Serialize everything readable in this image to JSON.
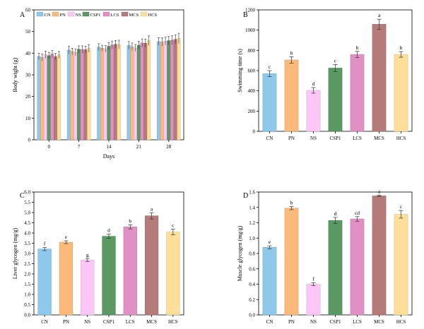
{
  "colors": {
    "CN": "#8ec8ea",
    "PN": "#fbb97a",
    "NS": "#fcc7f6",
    "CSP1": "#5a9a62",
    "LCS": "#e090c4",
    "MCS": "#b57a7a",
    "HCS": "#fddf9a"
  },
  "chart_data": [
    {
      "panel": "A",
      "type": "bar",
      "xlabel": "Days",
      "ylabel": "Body wight (g)",
      "ylim": [
        0,
        60
      ],
      "yticks": [
        "0",
        "10",
        "20",
        "30",
        "40",
        "50",
        "60"
      ],
      "categories": [
        "0",
        "7",
        "14",
        "21",
        "28"
      ],
      "legend_position": "top",
      "series": [
        {
          "name": "CN",
          "values": [
            38.5,
            41.5,
            42.8,
            43.6,
            45.4
          ],
          "errors": [
            1.5,
            1.8,
            1.6,
            1.8,
            1.8
          ]
        },
        {
          "name": "PN",
          "values": [
            38.0,
            40.8,
            42.3,
            43.0,
            45.2
          ],
          "errors": [
            1.6,
            1.5,
            1.4,
            1.7,
            1.9
          ]
        },
        {
          "name": "NS",
          "values": [
            39.3,
            40.4,
            42.0,
            42.4,
            45.6
          ],
          "errors": [
            1.7,
            1.5,
            1.5,
            1.6,
            1.8
          ]
        },
        {
          "name": "CSP1",
          "values": [
            38.9,
            41.8,
            43.2,
            43.7,
            45.8
          ],
          "errors": [
            1.5,
            1.6,
            1.7,
            1.8,
            1.9
          ]
        },
        {
          "name": "LCS",
          "values": [
            39.6,
            41.7,
            43.8,
            44.7,
            46.0
          ],
          "errors": [
            1.6,
            1.7,
            1.8,
            1.9,
            2.0
          ]
        },
        {
          "name": "MCS",
          "values": [
            38.4,
            41.6,
            44.1,
            44.6,
            46.4
          ],
          "errors": [
            1.5,
            1.6,
            1.8,
            1.9,
            2.1
          ]
        },
        {
          "name": "HCS",
          "values": [
            39.2,
            42.2,
            44.0,
            45.8,
            46.8
          ],
          "errors": [
            1.6,
            1.8,
            2.0,
            2.2,
            2.4
          ]
        }
      ]
    },
    {
      "panel": "B",
      "type": "bar",
      "ylabel": "Swimming time (s)",
      "xlabel": "",
      "ylim": [
        0,
        1200
      ],
      "yticks": [
        "0",
        "200",
        "400",
        "600",
        "800",
        "1000",
        "1200"
      ],
      "categories": [
        "CN",
        "PN",
        "NS",
        "CSP1",
        "LCS",
        "MCS",
        "HCS"
      ],
      "values": [
        570,
        705,
        405,
        625,
        760,
        1058,
        760
      ],
      "errors": [
        30,
        32,
        28,
        35,
        30,
        50,
        28
      ],
      "sig_letters": [
        "c",
        "b",
        "d",
        "c",
        "b",
        "a",
        "b"
      ]
    },
    {
      "panel": "C",
      "type": "bar",
      "ylabel": "Liver glycogen (mg/g)",
      "xlabel": "",
      "ylim": [
        0,
        6.0
      ],
      "yticks": [
        "0.0",
        "0.5",
        "1.0",
        "1.5",
        "2.0",
        "2.5",
        "3.0",
        "3.5",
        "4.0",
        "4.5",
        "5.0",
        "5.5",
        "6.0"
      ],
      "categories": [
        "CN",
        "PN",
        "NS",
        "CSP1",
        "LCS",
        "MCS",
        "HCS"
      ],
      "values": [
        3.22,
        3.55,
        2.68,
        3.84,
        4.3,
        4.84,
        4.05
      ],
      "errors": [
        0.08,
        0.07,
        0.07,
        0.1,
        0.1,
        0.15,
        0.14
      ],
      "sig_letters": [
        "f",
        "e",
        "g",
        "d",
        "b",
        "a",
        "c"
      ]
    },
    {
      "panel": "D",
      "type": "bar",
      "ylabel": "Muscle glycogen (mg/g)",
      "xlabel": "",
      "ylim": [
        0,
        1.6
      ],
      "yticks": [
        "0.0",
        "0.2",
        "0.4",
        "0.6",
        "0.8",
        "1.0",
        "1.2",
        "1.4",
        "1.6"
      ],
      "categories": [
        "CN",
        "PN",
        "NS",
        "CSP1",
        "LCS",
        "MCS",
        "HCS"
      ],
      "values": [
        0.88,
        1.39,
        0.4,
        1.23,
        1.25,
        1.55,
        1.31
      ],
      "errors": [
        0.02,
        0.02,
        0.02,
        0.04,
        0.03,
        0.01,
        0.05
      ],
      "sig_letters": [
        "e",
        "b",
        "f",
        "d",
        "cd",
        "a",
        "c"
      ]
    }
  ]
}
